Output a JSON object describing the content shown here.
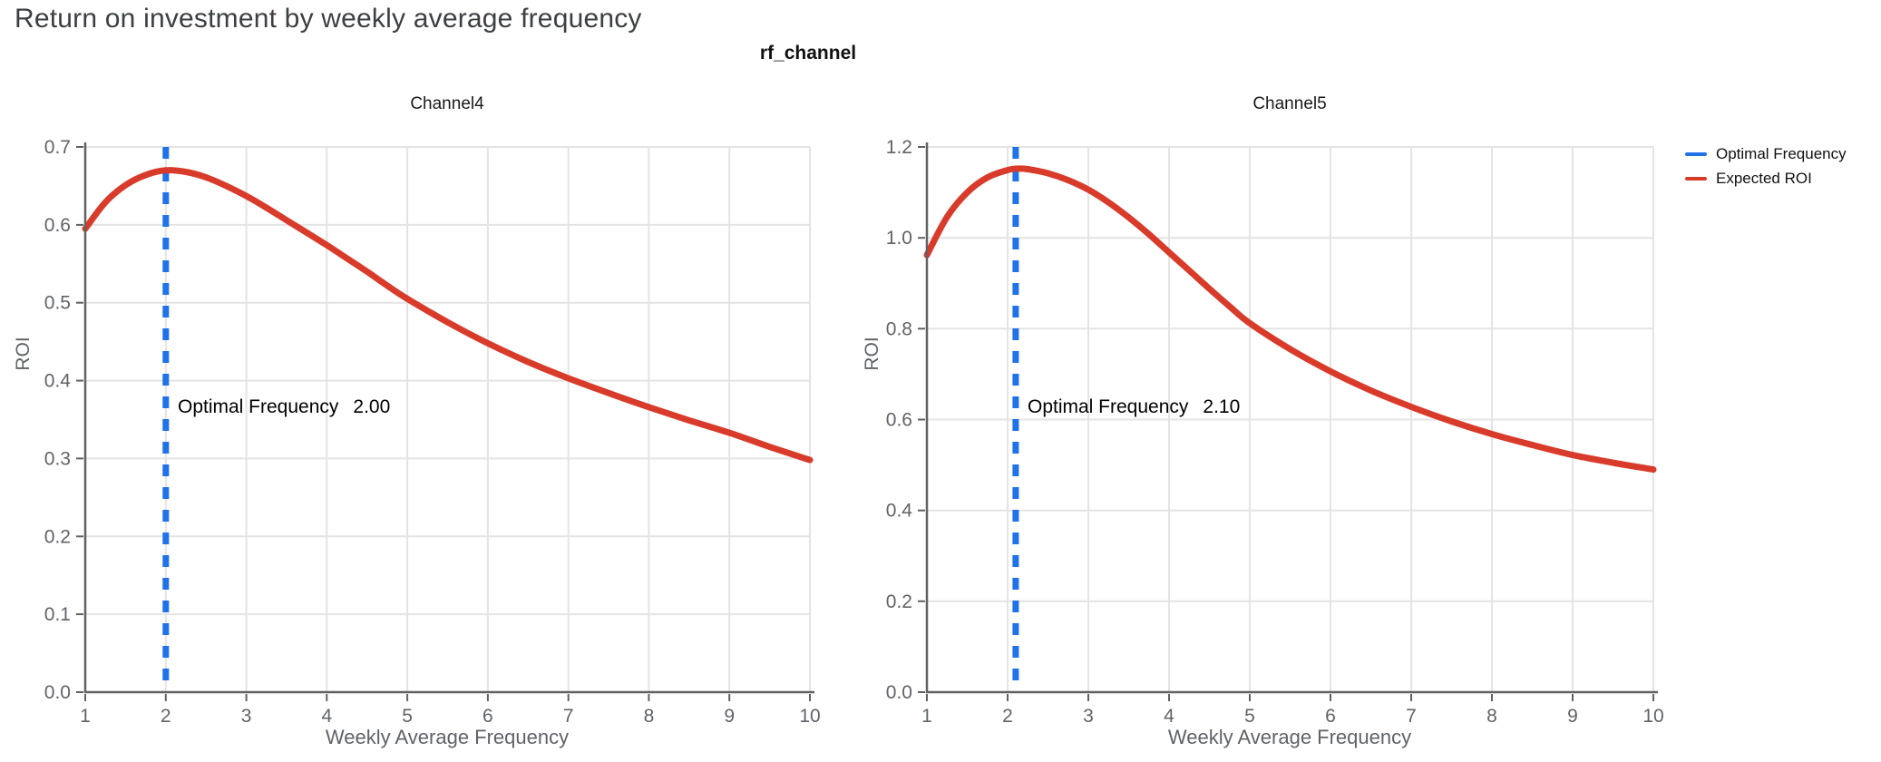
{
  "page": {
    "title": "Return on investment by weekly average frequency",
    "facet_label": "rf_channel"
  },
  "legend": {
    "items": [
      {
        "label": "Optimal Frequency",
        "color": "#1f72e8",
        "style": "dashed-line"
      },
      {
        "label": "Expected ROI",
        "color": "#d93b2b",
        "style": "solid-line"
      }
    ]
  },
  "colors": {
    "expected_roi": "#d93b2b",
    "optimal_frequency": "#1f72e8",
    "axis_line": "#616161",
    "tick_text": "#5f6368",
    "gridline": "#e4e4e4",
    "title_text": "#3c4043",
    "annotation_text": "#000000"
  },
  "chart_data": [
    {
      "type": "line",
      "title": "Channel4",
      "xlabel": "Weekly Average Frequency",
      "ylabel": "ROI",
      "xlim": [
        1,
        10
      ],
      "ylim": [
        0.0,
        0.7
      ],
      "xticks": [
        1,
        2,
        3,
        4,
        5,
        6,
        7,
        8,
        9,
        10
      ],
      "yticks": [
        "0.0",
        "0.1",
        "0.2",
        "0.3",
        "0.4",
        "0.5",
        "0.6",
        "0.7"
      ],
      "grid": true,
      "legend_position": "top-right-outside",
      "optimal_frequency": 2.0,
      "annotation": {
        "label": "Optimal Frequency",
        "value": "2.00"
      },
      "series": [
        {
          "name": "Expected ROI",
          "type": "line",
          "x": [
            1,
            1.25,
            1.5,
            1.75,
            2,
            2.25,
            2.5,
            2.75,
            3,
            3.25,
            3.5,
            3.75,
            4,
            4.25,
            4.5,
            4.75,
            5,
            5.5,
            6,
            6.5,
            7,
            7.5,
            8,
            8.5,
            9,
            9.5,
            10
          ],
          "y": [
            0.595,
            0.629,
            0.651,
            0.664,
            0.67,
            0.668,
            0.661,
            0.65,
            0.637,
            0.622,
            0.606,
            0.59,
            0.574,
            0.557,
            0.54,
            0.522,
            0.505,
            0.475,
            0.448,
            0.424,
            0.403,
            0.384,
            0.366,
            0.349,
            0.333,
            0.315,
            0.298
          ]
        },
        {
          "name": "Optimal Frequency",
          "type": "vline",
          "x": 2.0
        }
      ]
    },
    {
      "type": "line",
      "title": "Channel5",
      "xlabel": "Weekly Average Frequency",
      "ylabel": "ROI",
      "xlim": [
        1,
        10
      ],
      "ylim": [
        0.0,
        1.2
      ],
      "xticks": [
        1,
        2,
        3,
        4,
        5,
        6,
        7,
        8,
        9,
        10
      ],
      "yticks": [
        "0.0",
        "0.2",
        "0.4",
        "0.6",
        "0.8",
        "1.0",
        "1.2"
      ],
      "grid": true,
      "legend_position": "top-right-outside",
      "optimal_frequency": 2.1,
      "annotation": {
        "label": "Optimal Frequency",
        "value": "2.10"
      },
      "series": [
        {
          "name": "Expected ROI",
          "type": "line",
          "x": [
            1,
            1.25,
            1.5,
            1.75,
            2,
            2.1,
            2.25,
            2.5,
            2.75,
            3,
            3.25,
            3.5,
            3.75,
            4,
            4.25,
            4.5,
            4.75,
            5,
            5.5,
            6,
            6.5,
            7,
            7.5,
            8,
            8.5,
            9,
            9.5,
            10
          ],
          "y": [
            0.962,
            1.046,
            1.1,
            1.133,
            1.149,
            1.152,
            1.151,
            1.142,
            1.127,
            1.106,
            1.078,
            1.045,
            1.008,
            0.968,
            0.928,
            0.888,
            0.849,
            0.812,
            0.755,
            0.706,
            0.664,
            0.628,
            0.596,
            0.568,
            0.544,
            0.522,
            0.505,
            0.49
          ]
        },
        {
          "name": "Optimal Frequency",
          "type": "vline",
          "x": 2.1
        }
      ]
    }
  ]
}
